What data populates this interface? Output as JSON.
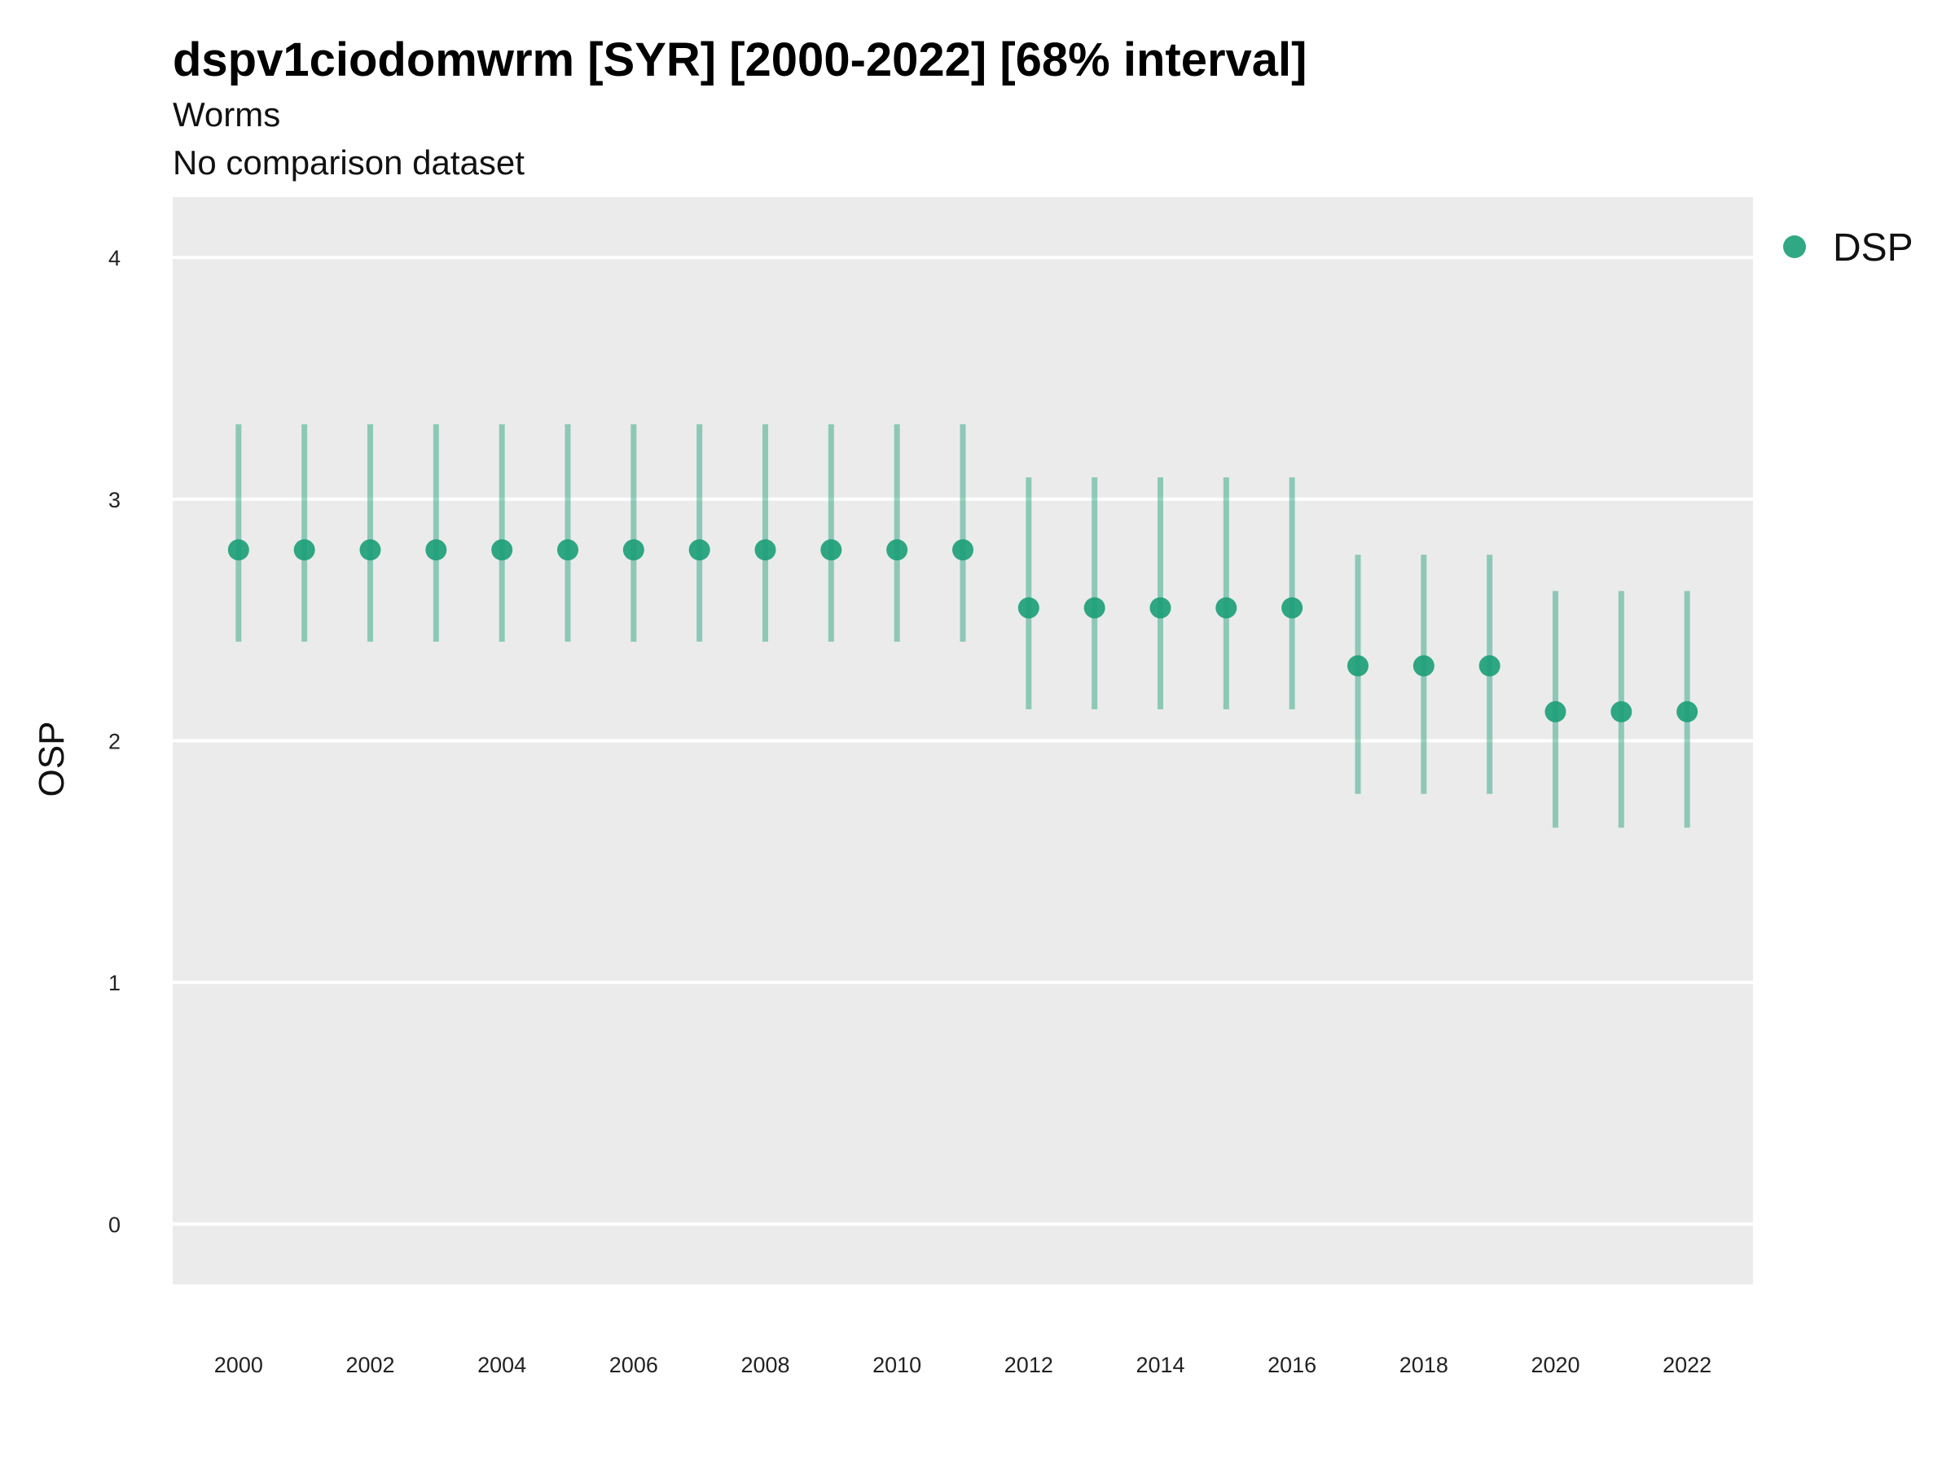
{
  "chart_data": {
    "type": "scatter",
    "title": "dspv1ciodomwrm [SYR] [2000-2022] [68% interval]",
    "subtitle": "Worms",
    "subtitle2": "No comparison dataset",
    "ylabel": "OSP",
    "xlabel": "",
    "ylim": [
      -0.25,
      4.25
    ],
    "yticks": [
      0,
      1,
      2,
      3,
      4
    ],
    "xticks": [
      2000,
      2002,
      2004,
      2006,
      2008,
      2010,
      2012,
      2014,
      2016,
      2018,
      2020,
      2022
    ],
    "xlim": [
      1999,
      2023
    ],
    "grid": true,
    "legend_position": "top-right",
    "colors": {
      "point": "#1b9e77",
      "interval": "#1b9e77",
      "panel": "#ebebeb",
      "grid": "#ffffff"
    },
    "series": [
      {
        "name": "DSP",
        "x": [
          2000,
          2001,
          2002,
          2003,
          2004,
          2005,
          2006,
          2007,
          2008,
          2009,
          2010,
          2011,
          2012,
          2013,
          2014,
          2015,
          2016,
          2017,
          2018,
          2019,
          2020,
          2021,
          2022
        ],
        "y": [
          2.79,
          2.79,
          2.79,
          2.79,
          2.79,
          2.79,
          2.79,
          2.79,
          2.79,
          2.79,
          2.79,
          2.79,
          2.55,
          2.55,
          2.55,
          2.55,
          2.55,
          2.31,
          2.31,
          2.31,
          2.12,
          2.12,
          2.12
        ],
        "lower": [
          2.41,
          2.41,
          2.41,
          2.41,
          2.41,
          2.41,
          2.41,
          2.41,
          2.41,
          2.41,
          2.41,
          2.41,
          2.13,
          2.13,
          2.13,
          2.13,
          2.13,
          1.78,
          1.78,
          1.78,
          1.64,
          1.64,
          1.64
        ],
        "upper": [
          3.31,
          3.31,
          3.31,
          3.31,
          3.31,
          3.31,
          3.31,
          3.31,
          3.31,
          3.31,
          3.31,
          3.31,
          3.09,
          3.09,
          3.09,
          3.09,
          3.09,
          2.77,
          2.77,
          2.77,
          2.62,
          2.62,
          2.62
        ]
      }
    ]
  }
}
